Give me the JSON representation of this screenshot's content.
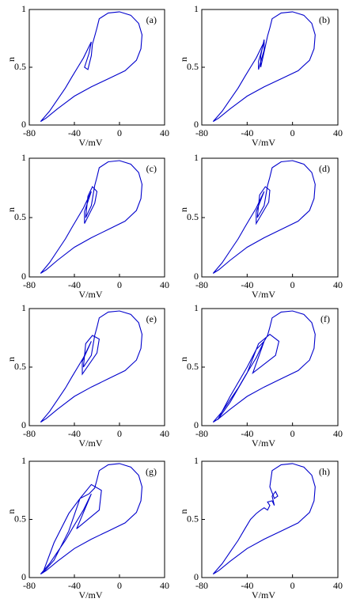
{
  "chart_data": [
    {
      "type": "line",
      "panel_label": "(a)",
      "xlabel": "V/mV",
      "ylabel": "n",
      "color": "#0000cc",
      "xlim": [
        -80,
        40
      ],
      "ylim": [
        0,
        1
      ],
      "xticks": [
        -80,
        -40,
        0,
        40
      ],
      "yticks": [
        0,
        0.5,
        1
      ],
      "x": [
        -70,
        -62,
        -55,
        -48,
        -42,
        -37,
        -32,
        -28,
        -25,
        -27,
        -31,
        -28,
        -25,
        -24,
        -22,
        -20,
        -18,
        -10,
        0,
        10,
        17,
        20,
        19,
        15,
        5,
        -10,
        -25,
        -40,
        -55,
        -65,
        -70
      ],
      "values": [
        0.03,
        0.12,
        0.22,
        0.32,
        0.42,
        0.5,
        0.58,
        0.66,
        0.72,
        0.62,
        0.5,
        0.48,
        0.6,
        0.7,
        0.77,
        0.84,
        0.92,
        0.97,
        0.98,
        0.95,
        0.88,
        0.78,
        0.66,
        0.56,
        0.47,
        0.4,
        0.33,
        0.25,
        0.14,
        0.06,
        0.03
      ]
    },
    {
      "type": "line",
      "panel_label": "(b)",
      "xlabel": "V/mV",
      "ylabel": "n",
      "color": "#0000cc",
      "xlim": [
        -80,
        40
      ],
      "ylim": [
        0,
        1
      ],
      "xticks": [
        -80,
        -40,
        0,
        40
      ],
      "yticks": [
        0,
        0.5,
        1
      ],
      "x": [
        -70,
        -62,
        -55,
        -48,
        -42,
        -37,
        -32,
        -28,
        -25,
        -30,
        -30,
        -25,
        -25,
        -28,
        -28,
        -24,
        -22,
        -20,
        -18,
        -10,
        0,
        10,
        17,
        20,
        19,
        15,
        5,
        -10,
        -25,
        -40,
        -55,
        -65,
        -70
      ],
      "values": [
        0.03,
        0.12,
        0.22,
        0.32,
        0.42,
        0.5,
        0.58,
        0.66,
        0.72,
        0.55,
        0.48,
        0.65,
        0.74,
        0.6,
        0.5,
        0.68,
        0.77,
        0.84,
        0.92,
        0.97,
        0.98,
        0.95,
        0.88,
        0.78,
        0.66,
        0.56,
        0.47,
        0.4,
        0.33,
        0.25,
        0.14,
        0.06,
        0.03
      ]
    },
    {
      "type": "line",
      "panel_label": "(c)",
      "xlabel": "V/mV",
      "ylabel": "n",
      "color": "#0000cc",
      "xlim": [
        -80,
        40
      ],
      "ylim": [
        0,
        1
      ],
      "xticks": [
        -80,
        -40,
        0,
        40
      ],
      "yticks": [
        0,
        0.5,
        1
      ],
      "x": [
        -70,
        -62,
        -55,
        -48,
        -42,
        -37,
        -32,
        -28,
        -25,
        -31,
        -31,
        -22,
        -20,
        -24,
        -28,
        -30,
        -25,
        -22,
        -20,
        -18,
        -10,
        0,
        10,
        17,
        20,
        19,
        15,
        5,
        -10,
        -25,
        -40,
        -55,
        -65,
        -70
      ],
      "values": [
        0.03,
        0.12,
        0.22,
        0.32,
        0.42,
        0.5,
        0.58,
        0.66,
        0.72,
        0.55,
        0.45,
        0.62,
        0.72,
        0.76,
        0.68,
        0.5,
        0.6,
        0.77,
        0.84,
        0.92,
        0.97,
        0.98,
        0.95,
        0.88,
        0.78,
        0.66,
        0.56,
        0.47,
        0.4,
        0.33,
        0.25,
        0.14,
        0.06,
        0.03
      ]
    },
    {
      "type": "line",
      "panel_label": "(d)",
      "xlabel": "V/mV",
      "ylabel": "n",
      "color": "#0000cc",
      "xlim": [
        -80,
        40
      ],
      "ylim": [
        0,
        1
      ],
      "xticks": [
        -80,
        -40,
        0,
        40
      ],
      "yticks": [
        0,
        0.5,
        1
      ],
      "x": [
        -70,
        -62,
        -55,
        -48,
        -42,
        -37,
        -32,
        -28,
        -25,
        -32,
        -32,
        -21,
        -20,
        -24,
        -29,
        -31,
        -25,
        -22,
        -20,
        -18,
        -10,
        0,
        10,
        17,
        20,
        19,
        15,
        5,
        -10,
        -25,
        -40,
        -55,
        -65,
        -70
      ],
      "values": [
        0.03,
        0.12,
        0.22,
        0.32,
        0.42,
        0.5,
        0.58,
        0.66,
        0.72,
        0.55,
        0.45,
        0.63,
        0.73,
        0.76,
        0.69,
        0.5,
        0.6,
        0.77,
        0.84,
        0.92,
        0.97,
        0.98,
        0.95,
        0.88,
        0.78,
        0.66,
        0.56,
        0.47,
        0.4,
        0.33,
        0.25,
        0.14,
        0.06,
        0.03
      ]
    },
    {
      "type": "line",
      "panel_label": "(e)",
      "xlabel": "V/mV",
      "ylabel": "n",
      "color": "#0000cc",
      "xlim": [
        -80,
        40
      ],
      "ylim": [
        0,
        1
      ],
      "xticks": [
        -80,
        -40,
        0,
        40
      ],
      "yticks": [
        0,
        0.5,
        1
      ],
      "x": [
        -70,
        -62,
        -55,
        -48,
        -42,
        -37,
        -32,
        -28,
        -25,
        -33,
        -33,
        -20,
        -18,
        -24,
        -30,
        -32,
        -25,
        -22,
        -20,
        -18,
        -10,
        0,
        10,
        17,
        20,
        19,
        15,
        5,
        -10,
        -25,
        -40,
        -55,
        -65,
        -70
      ],
      "values": [
        0.03,
        0.12,
        0.22,
        0.32,
        0.42,
        0.5,
        0.58,
        0.66,
        0.72,
        0.55,
        0.44,
        0.62,
        0.74,
        0.77,
        0.7,
        0.5,
        0.6,
        0.77,
        0.84,
        0.92,
        0.97,
        0.98,
        0.95,
        0.88,
        0.78,
        0.66,
        0.56,
        0.47,
        0.4,
        0.33,
        0.25,
        0.14,
        0.06,
        0.03
      ]
    },
    {
      "type": "line",
      "panel_label": "(f)",
      "xlabel": "V/mV",
      "ylabel": "n",
      "color": "#0000cc",
      "xlim": [
        -80,
        40
      ],
      "ylim": [
        0,
        1
      ],
      "xticks": [
        -80,
        -40,
        0,
        40
      ],
      "yticks": [
        0,
        0.5,
        1
      ],
      "x": [
        -70,
        -62,
        -55,
        -48,
        -42,
        -37,
        -32,
        -28,
        -25,
        -35,
        -15,
        -12,
        -20,
        -30,
        -40,
        -55,
        -66,
        -55,
        -40,
        -32,
        -25,
        -22,
        -20,
        -18,
        -10,
        0,
        10,
        17,
        20,
        19,
        15,
        5,
        -10,
        -25,
        -40,
        -55,
        -65,
        -70
      ],
      "values": [
        0.03,
        0.12,
        0.22,
        0.32,
        0.42,
        0.5,
        0.58,
        0.66,
        0.72,
        0.45,
        0.6,
        0.72,
        0.78,
        0.7,
        0.45,
        0.2,
        0.05,
        0.25,
        0.5,
        0.65,
        0.72,
        0.77,
        0.84,
        0.92,
        0.97,
        0.98,
        0.95,
        0.88,
        0.78,
        0.66,
        0.56,
        0.47,
        0.4,
        0.33,
        0.25,
        0.14,
        0.06,
        0.03
      ]
    },
    {
      "type": "line",
      "panel_label": "(g)",
      "xlabel": "V/mV",
      "ylabel": "n",
      "color": "#0000cc",
      "xlim": [
        -80,
        40
      ],
      "ylim": [
        0,
        1
      ],
      "xticks": [
        -80,
        -40,
        0,
        40
      ],
      "yticks": [
        0,
        0.5,
        1
      ],
      "x": [
        -70,
        -62,
        -55,
        -48,
        -42,
        -37,
        -32,
        -28,
        -25,
        -38,
        -18,
        -16,
        -25,
        -35,
        -45,
        -58,
        -68,
        -58,
        -45,
        -35,
        -27,
        -22,
        -20,
        -18,
        -10,
        0,
        10,
        17,
        20,
        19,
        15,
        5,
        -10,
        -25,
        -40,
        -55,
        -65,
        -70
      ],
      "values": [
        0.03,
        0.12,
        0.22,
        0.32,
        0.42,
        0.5,
        0.58,
        0.66,
        0.72,
        0.42,
        0.58,
        0.75,
        0.8,
        0.68,
        0.4,
        0.15,
        0.04,
        0.3,
        0.55,
        0.68,
        0.72,
        0.77,
        0.84,
        0.92,
        0.97,
        0.98,
        0.95,
        0.88,
        0.78,
        0.66,
        0.56,
        0.47,
        0.4,
        0.33,
        0.25,
        0.14,
        0.06,
        0.03
      ]
    },
    {
      "type": "line",
      "panel_label": "(h)",
      "xlabel": "V/mV",
      "ylabel": "n",
      "color": "#0000cc",
      "xlim": [
        -80,
        40
      ],
      "ylim": [
        0,
        1
      ],
      "xticks": [
        -80,
        -40,
        0,
        40
      ],
      "yticks": [
        0,
        0.5,
        1
      ],
      "x": [
        -70,
        -62,
        -55,
        -48,
        -42,
        -37,
        -32,
        -28,
        -25,
        -22,
        -20,
        -22,
        -18,
        -16,
        -18,
        -15,
        -13,
        -16,
        -20,
        -18,
        -10,
        0,
        10,
        17,
        20,
        19,
        15,
        5,
        -10,
        -25,
        -40,
        -55,
        -65,
        -70
      ],
      "values": [
        0.03,
        0.12,
        0.22,
        0.32,
        0.42,
        0.5,
        0.55,
        0.58,
        0.6,
        0.58,
        0.62,
        0.65,
        0.66,
        0.62,
        0.7,
        0.74,
        0.7,
        0.68,
        0.78,
        0.92,
        0.97,
        0.98,
        0.95,
        0.88,
        0.78,
        0.66,
        0.56,
        0.47,
        0.4,
        0.33,
        0.25,
        0.14,
        0.06,
        0.03
      ]
    }
  ]
}
